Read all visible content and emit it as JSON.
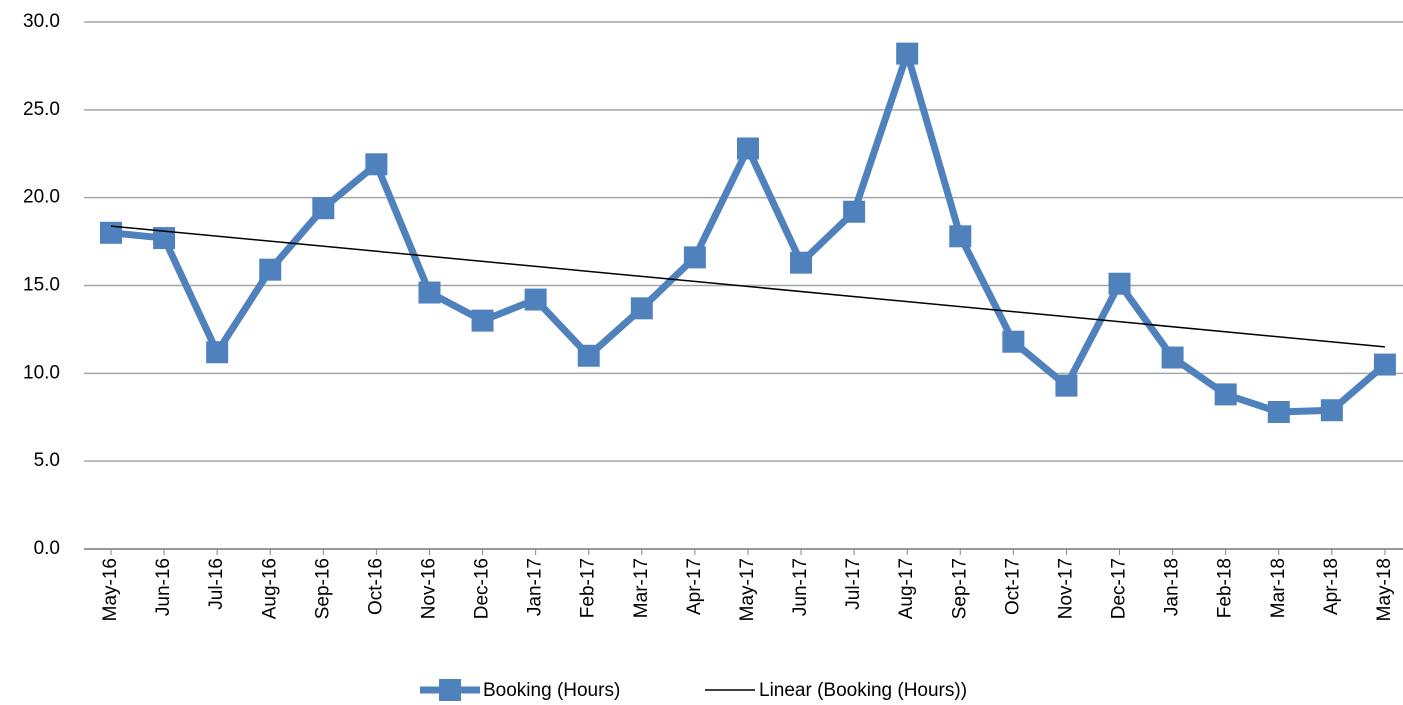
{
  "chart_data": {
    "type": "line",
    "categories": [
      "May-16",
      "Jun-16",
      "Jul-16",
      "Aug-16",
      "Sep-16",
      "Oct-16",
      "Nov-16",
      "Dec-16",
      "Jan-17",
      "Feb-17",
      "Mar-17",
      "Apr-17",
      "May-17",
      "Jun-17",
      "Jul-17",
      "Aug-17",
      "Sep-17",
      "Oct-17",
      "Nov-17",
      "Dec-17",
      "Jan-18",
      "Feb-18",
      "Mar-18",
      "Apr-18",
      "May-18"
    ],
    "series": [
      {
        "name": "Booking (Hours)",
        "color": "#4f81bd",
        "values": [
          18.0,
          17.7,
          11.2,
          15.9,
          19.4,
          21.9,
          14.6,
          13.0,
          14.2,
          11.0,
          13.7,
          16.6,
          22.8,
          16.3,
          19.2,
          28.2,
          17.8,
          11.8,
          9.3,
          15.1,
          10.9,
          8.8,
          7.8,
          7.9,
          10.5
        ]
      }
    ],
    "trendline": {
      "name": "Linear (Booking (Hours))",
      "color": "#000000"
    },
    "ylim": [
      0,
      30
    ],
    "yticks": [
      {
        "value": 0,
        "label": "0.0"
      },
      {
        "value": 5,
        "label": "5.0"
      },
      {
        "value": 10,
        "label": "10.0"
      },
      {
        "value": 15,
        "label": "15.0"
      },
      {
        "value": 20,
        "label": "20.0"
      },
      {
        "value": 25,
        "label": "25.0"
      },
      {
        "value": 30,
        "label": "30.0"
      }
    ],
    "grid": true
  }
}
